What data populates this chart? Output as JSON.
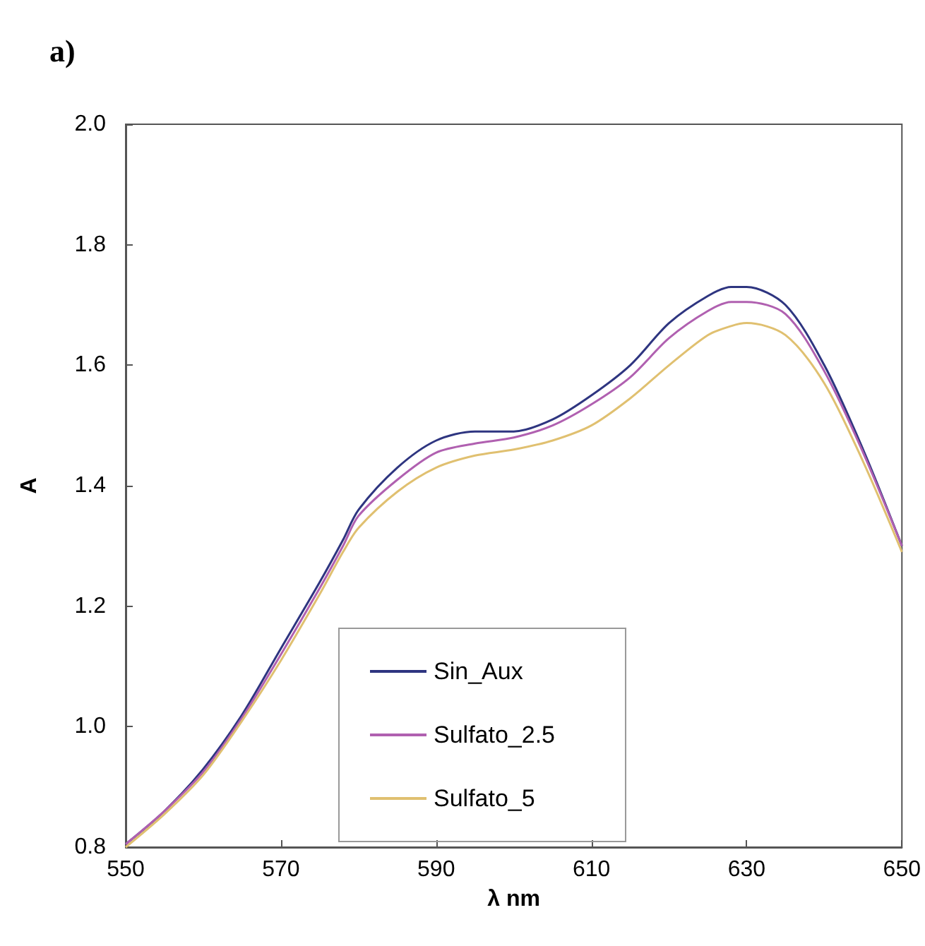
{
  "chart_data": {
    "type": "line",
    "title": "a)",
    "xlabel": "λ nm",
    "ylabel": "A",
    "x": [
      550,
      555,
      560,
      565,
      570,
      575,
      578,
      580,
      585,
      590,
      595,
      600,
      605,
      610,
      615,
      620,
      625,
      628,
      630,
      635,
      640,
      645,
      650
    ],
    "series": [
      {
        "name": "Sin_Aux",
        "color": "#2e3580",
        "values": [
          0.805,
          0.86,
          0.93,
          1.02,
          1.13,
          1.24,
          1.31,
          1.36,
          1.43,
          1.475,
          1.49,
          1.49,
          1.51,
          1.55,
          1.6,
          1.67,
          1.715,
          1.73,
          1.73,
          1.7,
          1.6,
          1.46,
          1.3
        ]
      },
      {
        "name": "Sulfato_2.5",
        "color": "#b060b0",
        "values": [
          0.805,
          0.86,
          0.925,
          1.015,
          1.12,
          1.23,
          1.3,
          1.35,
          1.41,
          1.455,
          1.47,
          1.48,
          1.5,
          1.535,
          1.58,
          1.645,
          1.69,
          1.705,
          1.705,
          1.685,
          1.59,
          1.455,
          1.3
        ]
      },
      {
        "name": "Sulfato_5",
        "color": "#e0c070",
        "values": [
          0.8,
          0.855,
          0.92,
          1.01,
          1.11,
          1.22,
          1.29,
          1.33,
          1.39,
          1.43,
          1.45,
          1.46,
          1.475,
          1.5,
          1.545,
          1.6,
          1.65,
          1.665,
          1.67,
          1.65,
          1.57,
          1.44,
          1.29
        ]
      }
    ],
    "xlim": [
      550,
      650
    ],
    "xticks": [
      550,
      570,
      590,
      610,
      630,
      650
    ],
    "ylim": [
      0.8,
      2.0
    ],
    "yticks": [
      0.8,
      {
        "value": 1,
        "label": "1.0"
      },
      1.2,
      1.4,
      1.6,
      1.8,
      {
        "value": 2,
        "label": "2.0"
      }
    ],
    "grid": false,
    "legend": "bottom",
    "marker": "none",
    "line_style": "solid"
  }
}
